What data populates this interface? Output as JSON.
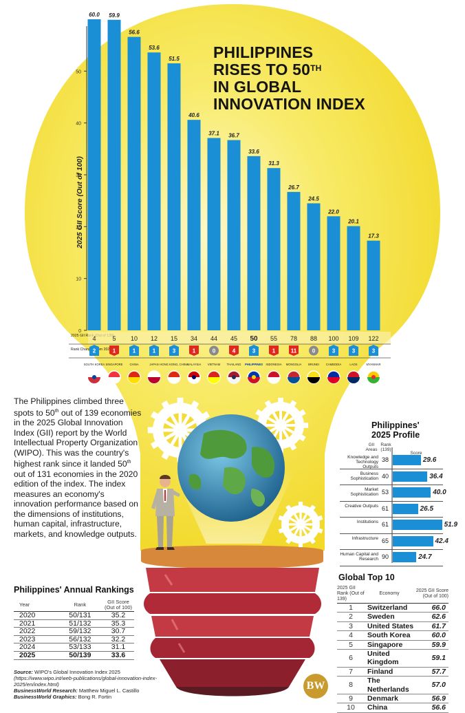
{
  "title": {
    "line1": "PHILIPPINES",
    "line2_a": "RISES TO 50",
    "line2_sup": "TH",
    "line3": "IN GLOBAL",
    "line4": "INNOVATION INDEX"
  },
  "chart_data": {
    "type": "bar",
    "ylabel": "2025 GII Score (Out of 100)",
    "ylim": [
      0,
      60
    ],
    "yticks": [
      0,
      10,
      20,
      30,
      40,
      50
    ],
    "categories": [
      "SOUTH KOREA",
      "SINGAPORE",
      "CHINA",
      "JAPAN",
      "HONG KONG, CHINA",
      "MALAYSIA",
      "VIETNAM",
      "THAILAND",
      "PHILIPPINES",
      "INDONESIA",
      "MONGOLIA",
      "BRUNEI",
      "CAMBODIA",
      "LAOS",
      "MYANMAR"
    ],
    "values": [
      60.0,
      59.9,
      56.6,
      53.6,
      51.5,
      40.6,
      37.1,
      36.7,
      33.6,
      31.3,
      26.7,
      24.5,
      22.0,
      20.1,
      17.3
    ],
    "value_labels": [
      "60.0",
      "59.9",
      "56.6",
      "53.6",
      "51.5",
      "40.6",
      "37.1",
      "36.7",
      "33.6",
      "31.3",
      "26.7",
      "24.5",
      "22.0",
      "20.1",
      "17.3"
    ],
    "rank_label": "2025 GII Rank (Out of 139)",
    "ranks": [
      "4",
      "5",
      "10",
      "12",
      "15",
      "34",
      "44",
      "45",
      "50",
      "55",
      "78",
      "88",
      "100",
      "109",
      "122"
    ],
    "change_label": "Rank Changes from 2024",
    "changes": [
      "2",
      "1",
      "1",
      "1",
      "3",
      "1",
      "0",
      "4",
      "3",
      "1",
      "11",
      "0",
      "3",
      "3",
      "3"
    ],
    "change_dir": [
      "up",
      "down",
      "up",
      "up",
      "up",
      "down",
      "none",
      "down",
      "up",
      "down",
      "down",
      "none",
      "up",
      "up",
      "up"
    ],
    "bar_color": "#1a8fd6",
    "up_color": "#1a8fd6",
    "down_color": "#e0281f",
    "none_color": "#8a8a8a"
  },
  "intro": {
    "text_a": "The Philippines climbed three spots to 50",
    "sup_a": "th",
    "text_b": " out of 139 economies in the 2025 Global Innovation Index (GII) report by the World Intellectual Property Organization (WIPO). This was the country's highest rank since it landed 50",
    "sup_b": "th",
    "text_c": " out of 131 economies in the 2020 edition of the index. The index measures an economy's innovation performance based on the dimensions of institutions, human capital, infrastructure, markets, and knowledge outputs."
  },
  "annual": {
    "title": "Philippines' Annual Rankings",
    "col_year": "Year",
    "col_rank": "Rank",
    "col_score": "GII Score (Out of 100)",
    "rows": [
      {
        "year": "2020",
        "rank": "50/131",
        "score": "35.2"
      },
      {
        "year": "2021",
        "rank": "51/132",
        "score": "35.3"
      },
      {
        "year": "2022",
        "rank": "59/132",
        "score": "30.7"
      },
      {
        "year": "2023",
        "rank": "56/132",
        "score": "32.2"
      },
      {
        "year": "2024",
        "rank": "53/133",
        "score": "31.1"
      },
      {
        "year": "2025",
        "rank": "50/139",
        "score": "33.6"
      }
    ]
  },
  "profile": {
    "title_1": "Philippines'",
    "title_2": "2025 Profile",
    "col_areas": "GII Areas",
    "col_rank": "Rank (139)",
    "col_score": "Score",
    "rows": [
      {
        "area": "Knowledge and Technology Outputs",
        "rank": "38",
        "score": 29.6,
        "label": "29.6"
      },
      {
        "area": "Business Sophistication",
        "rank": "40",
        "score": 36.4,
        "label": "36.4"
      },
      {
        "area": "Market Sophistication",
        "rank": "53",
        "score": 40.0,
        "label": "40.0"
      },
      {
        "area": "Creative Outputs",
        "rank": "61",
        "score": 26.5,
        "label": "26.5"
      },
      {
        "area": "Institutions",
        "rank": "61",
        "score": 51.9,
        "label": "51.9"
      },
      {
        "area": "Infrastructure",
        "rank": "65",
        "score": 42.4,
        "label": "42.4"
      },
      {
        "area": "Human Capital and Research",
        "rank": "90",
        "score": 24.7,
        "label": "24.7"
      }
    ]
  },
  "top10": {
    "title": "Global Top 10",
    "col_rank": "2025 GII Rank (Out of 139)",
    "col_economy": "Economy",
    "col_score": "2025 GII Score (Out of 100)",
    "rows": [
      {
        "rank": "1",
        "economy": "Switzerland",
        "score": "66.0"
      },
      {
        "rank": "2",
        "economy": "Sweden",
        "score": "62.6"
      },
      {
        "rank": "3",
        "economy": "United States",
        "score": "61.7"
      },
      {
        "rank": "4",
        "economy": "South Korea",
        "score": "60.0"
      },
      {
        "rank": "5",
        "economy": "Singapore",
        "score": "59.9"
      },
      {
        "rank": "6",
        "economy": "United Kingdom",
        "score": "59.1"
      },
      {
        "rank": "7",
        "economy": "Finland",
        "score": "57.7"
      },
      {
        "rank": "8",
        "economy": "The Netherlands",
        "score": "57.0"
      },
      {
        "rank": "9",
        "economy": "Denmark",
        "score": "56.9"
      },
      {
        "rank": "10",
        "economy": "China",
        "score": "56.6"
      }
    ]
  },
  "source": {
    "source_label": "Source:",
    "source_text": " WIPO's Global Innovation Index 2025",
    "source_url": "(https://www.wipo.int/web-publications/global-innovation-index-2025/en/index.html)",
    "research_label": "BusinessWorld Research:",
    "research_name": " Matthew Miguel L. Castillo",
    "graphics_label": "BusinessWorld Graphics:",
    "graphics_name": " Bong R. Fortin"
  },
  "logo": "BW",
  "colors": {
    "bulb_yellow": "#f5e13a",
    "bulb_glow": "#fbf3a8",
    "bar_blue": "#1a8fd6",
    "base_red": "#b32a3a",
    "gear_white": "#ffffff"
  }
}
